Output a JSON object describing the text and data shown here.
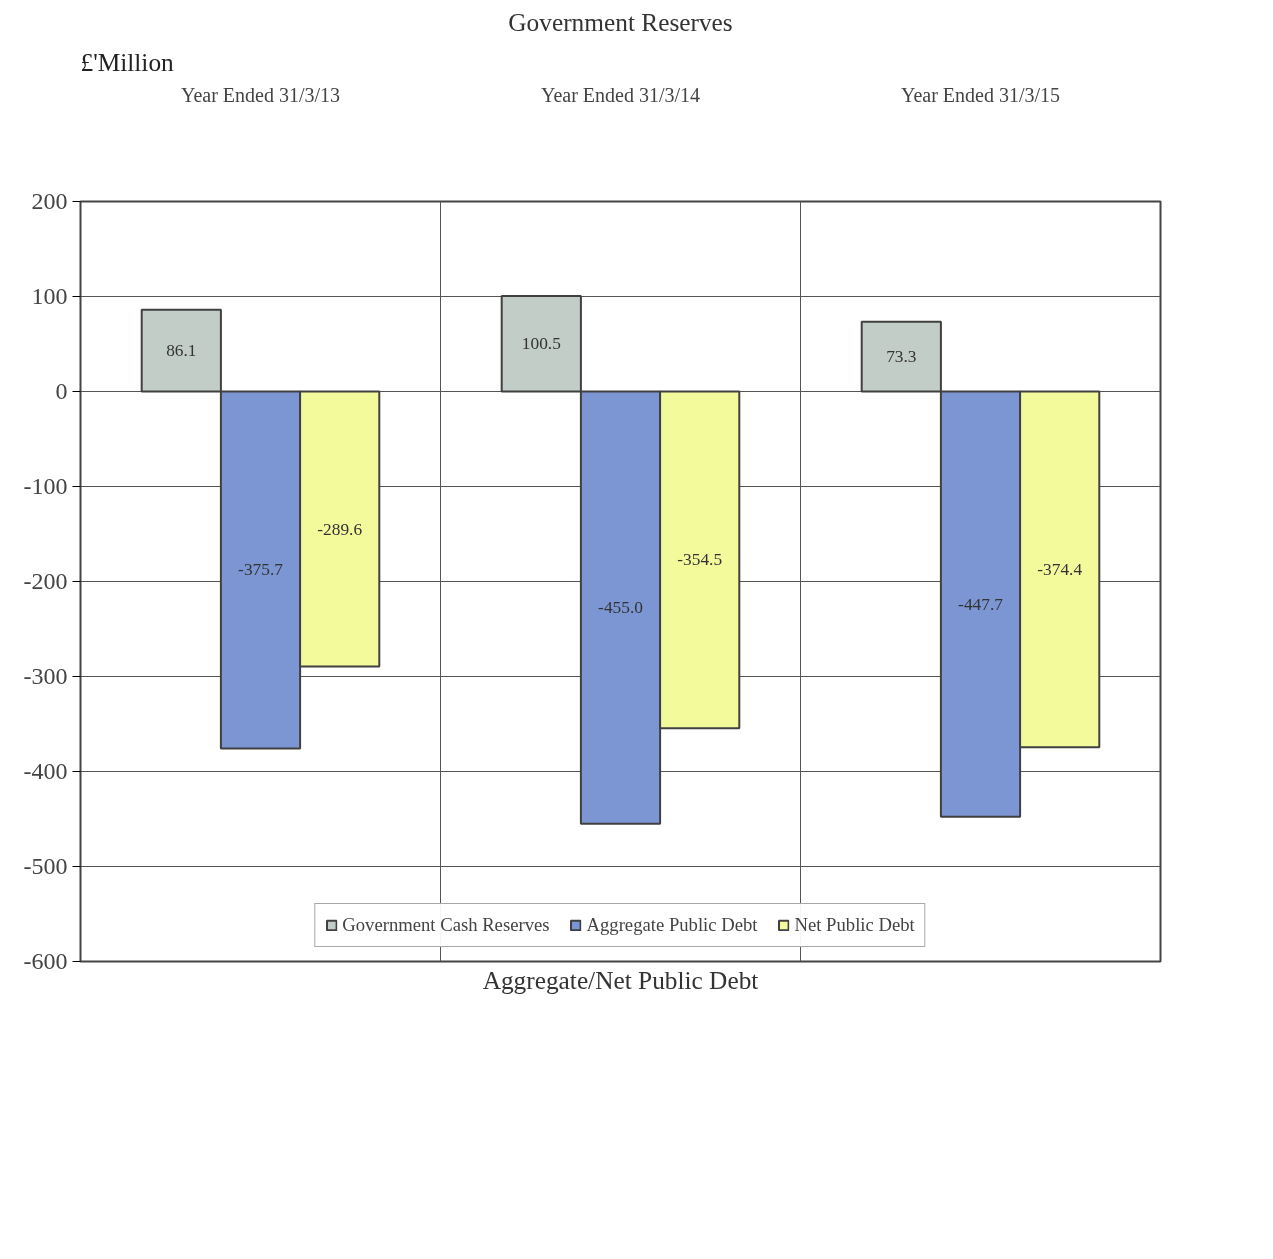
{
  "chart_data": {
    "type": "bar",
    "title": "Government Reserves",
    "ylabel": "£'Million",
    "xlabel": "Aggregate/Net Public Debt",
    "categories": [
      "Year Ended 31/3/13",
      "Year Ended 31/3/14",
      "Year Ended 31/3/15"
    ],
    "series": [
      {
        "name": "Government Cash Reserves",
        "color": "#c3cdc8",
        "values": [
          86.1,
          100.5,
          73.3
        ],
        "value_labels": [
          "86.1",
          "100.5",
          "73.3"
        ]
      },
      {
        "name": "Aggregate Public Debt",
        "color": "#7b96d2",
        "values": [
          -375.7,
          -455.0,
          -447.7
        ],
        "value_labels": [
          "-375.7",
          "-455.0",
          "-447.7"
        ]
      },
      {
        "name": "Net Public Debt",
        "color": "#f3fa9c",
        "values": [
          -289.6,
          -354.5,
          -374.4
        ],
        "value_labels": [
          "-289.6",
          "-354.5",
          "-374.4"
        ]
      }
    ],
    "ylim": [
      -600,
      200
    ],
    "yticks": [
      -600,
      -500,
      -400,
      -300,
      -200,
      -100,
      0,
      100,
      200
    ],
    "grid": true,
    "legend": "bottom"
  }
}
